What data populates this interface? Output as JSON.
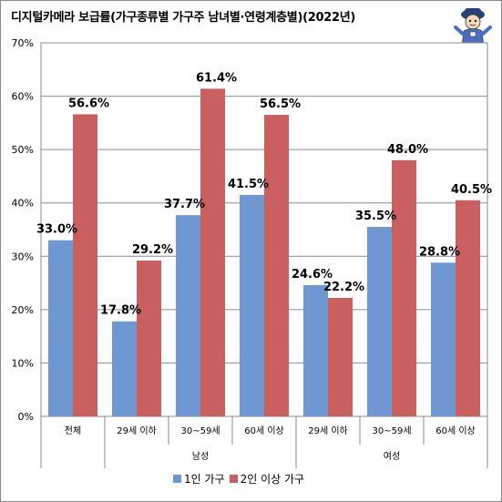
{
  "title": "디지털카메라 보급률(가구종류별 가구주 남녀별·연령계층별)(2022년)",
  "chart_data": {
    "type": "bar",
    "categories": [
      "전체",
      "29세 이하",
      "30~59세",
      "60세 이상",
      "29세 이하",
      "30~59세",
      "60세 이상"
    ],
    "groups": [
      {
        "label": "남성",
        "categories": [
          "29세 이하",
          "30~59세",
          "60세 이상"
        ]
      },
      {
        "label": "여성",
        "categories": [
          "29세 이하",
          "30~59세",
          "60세 이상"
        ]
      }
    ],
    "series": [
      {
        "name": "1인 가구",
        "color": "#6f98d2",
        "values": [
          33.0,
          17.8,
          37.7,
          41.5,
          24.6,
          35.5,
          28.8
        ],
        "labels": [
          "33.0%",
          "17.8%",
          "37.7%",
          "41.5%",
          "24.6%",
          "35.5%",
          "28.8%"
        ]
      },
      {
        "name": "2인 이상 가구",
        "color": "#c9605f",
        "values": [
          56.6,
          29.2,
          61.4,
          56.5,
          22.2,
          48.0,
          40.5
        ],
        "labels": [
          "56.6%",
          "29.2%",
          "61.4%",
          "56.5%",
          "22.2%",
          "48.0%",
          "40.5%"
        ]
      }
    ],
    "ylim": [
      0,
      70
    ],
    "yticks": [
      "0%",
      "10%",
      "20%",
      "30%",
      "40%",
      "50%",
      "60%",
      "70%"
    ],
    "grid": true,
    "legend_position": "bottom"
  }
}
